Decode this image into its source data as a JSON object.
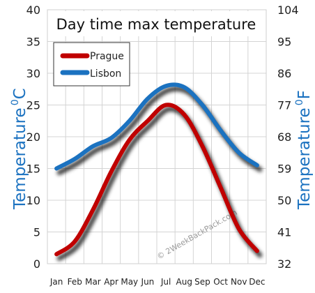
{
  "chart_data": {
    "type": "line",
    "title": "Day time max temperature",
    "categories": [
      "Jan",
      "Feb",
      "Mar",
      "Apr",
      "May",
      "Jun",
      "Jul",
      "Aug",
      "Sep",
      "Oct",
      "Nov",
      "Dec"
    ],
    "series": [
      {
        "name": "Prague",
        "color": "#c00000",
        "values": [
          1.5,
          3.5,
          8.5,
          14.5,
          19.5,
          22.5,
          25,
          23.5,
          18.5,
          12,
          5.5,
          2
        ]
      },
      {
        "name": "Lisbon",
        "color": "#1b72c0",
        "values": [
          15,
          16.5,
          18.5,
          19.8,
          22.5,
          26,
          28,
          27.8,
          25,
          21,
          17.5,
          15.5
        ]
      }
    ],
    "y_left": {
      "label": "Temperature",
      "unit_superscript": "0",
      "unit_letter": "C",
      "range": [
        0,
        40
      ],
      "ticks": [
        0,
        5,
        10,
        15,
        20,
        25,
        30,
        35,
        40
      ]
    },
    "y_right": {
      "label": "Temperature",
      "unit_superscript": "0",
      "unit_letter": "F",
      "range": [
        32,
        104
      ],
      "ticks": [
        32,
        41,
        50,
        59,
        68,
        77,
        86,
        95,
        104
      ]
    },
    "grid": true,
    "legend": "top-left",
    "watermark": "© 2WeekBackPack.com"
  }
}
